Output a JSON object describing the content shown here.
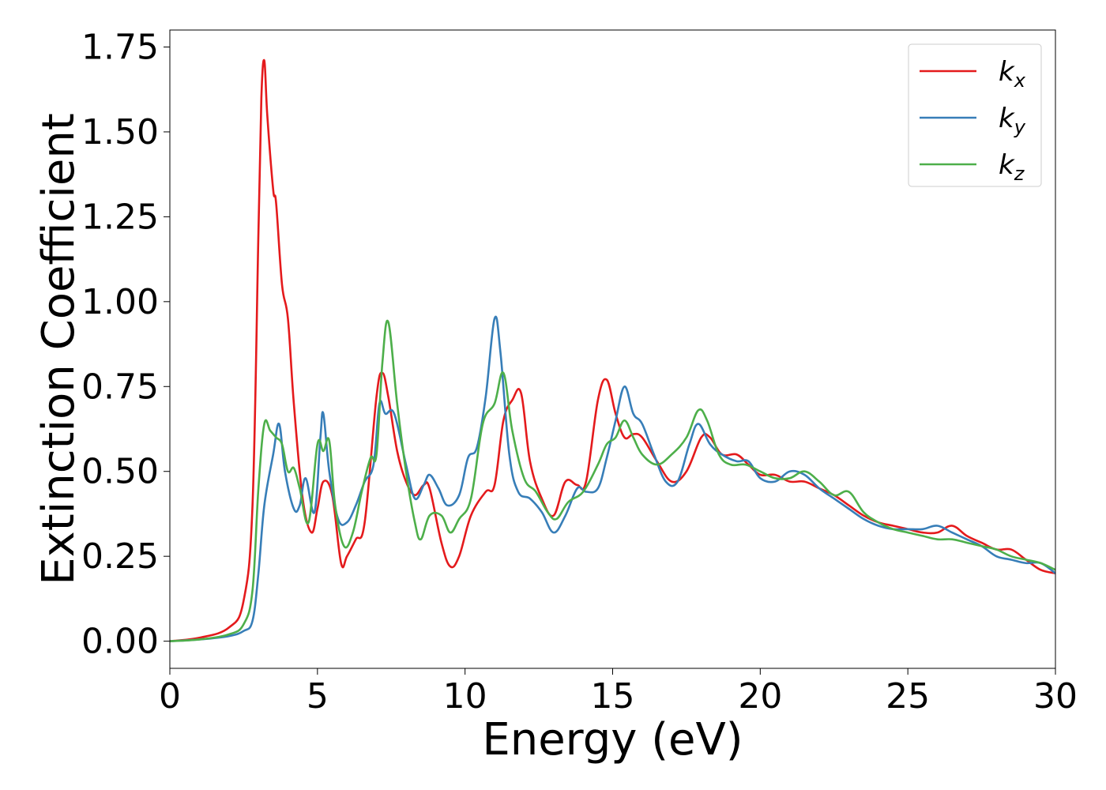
{
  "chart_data": {
    "type": "line",
    "title": "",
    "xlabel": "Energy (eV)",
    "ylabel": "Extinction Coefficient",
    "xlim": [
      0,
      30
    ],
    "ylim": [
      -0.08,
      1.8
    ],
    "xticks": [
      0,
      5,
      10,
      15,
      20,
      25,
      30
    ],
    "xtick_labels": [
      "0",
      "5",
      "10",
      "15",
      "20",
      "25",
      "30"
    ],
    "yticks": [
      0,
      0.25,
      0.5,
      0.75,
      1.0,
      1.25,
      1.5,
      1.75
    ],
    "ytick_labels": [
      "0.00",
      "0.25",
      "0.50",
      "0.75",
      "1.00",
      "1.25",
      "1.50",
      "1.75"
    ],
    "grid": false,
    "legend_position": "top-right",
    "series": [
      {
        "name": "k_x",
        "label_main": "k",
        "label_sub": "x",
        "color": "#e41a1c",
        "x": [
          0,
          1,
          2,
          2.5,
          2.8,
          3.0,
          3.1,
          3.2,
          3.3,
          3.5,
          3.6,
          3.8,
          4.0,
          4.2,
          4.5,
          4.8,
          5.0,
          5.2,
          5.5,
          5.8,
          6.0,
          6.3,
          6.6,
          7.0,
          7.2,
          7.4,
          7.7,
          8.0,
          8.3,
          8.6,
          8.8,
          9.2,
          9.5,
          9.8,
          10.2,
          10.7,
          11.0,
          11.3,
          11.6,
          11.9,
          12.2,
          12.6,
          13.0,
          13.4,
          13.8,
          14.1,
          14.5,
          14.8,
          15.1,
          15.4,
          15.7,
          16.0,
          16.5,
          17.0,
          17.5,
          18.0,
          18.3,
          18.7,
          19.2,
          19.6,
          20.0,
          20.5,
          21.0,
          21.5,
          22.0,
          22.5,
          23.0,
          23.5,
          24.0,
          24.5,
          25.0,
          25.5,
          26.0,
          26.5,
          27.0,
          27.5,
          28.0,
          28.5,
          29.0,
          29.5,
          30.0
        ],
        "y": [
          0.0,
          0.01,
          0.04,
          0.12,
          0.4,
          1.2,
          1.6,
          1.71,
          1.55,
          1.33,
          1.29,
          1.05,
          0.95,
          0.7,
          0.42,
          0.32,
          0.39,
          0.47,
          0.43,
          0.23,
          0.25,
          0.3,
          0.35,
          0.72,
          0.79,
          0.72,
          0.56,
          0.47,
          0.43,
          0.46,
          0.45,
          0.29,
          0.22,
          0.25,
          0.37,
          0.44,
          0.46,
          0.65,
          0.71,
          0.73,
          0.53,
          0.42,
          0.37,
          0.47,
          0.46,
          0.47,
          0.71,
          0.77,
          0.67,
          0.6,
          0.61,
          0.6,
          0.53,
          0.47,
          0.5,
          0.6,
          0.6,
          0.55,
          0.55,
          0.52,
          0.49,
          0.49,
          0.47,
          0.47,
          0.45,
          0.43,
          0.4,
          0.37,
          0.35,
          0.34,
          0.33,
          0.32,
          0.32,
          0.34,
          0.31,
          0.29,
          0.27,
          0.27,
          0.24,
          0.21,
          0.2
        ]
      },
      {
        "name": "k_y",
        "label_main": "k",
        "label_sub": "y",
        "color": "#377eb8",
        "x": [
          0,
          1,
          2,
          2.5,
          2.8,
          3.0,
          3.2,
          3.5,
          3.7,
          3.9,
          4.2,
          4.4,
          4.6,
          4.9,
          5.1,
          5.2,
          5.4,
          5.7,
          6.0,
          6.3,
          6.6,
          6.9,
          7.1,
          7.3,
          7.6,
          8.0,
          8.3,
          8.6,
          8.8,
          9.1,
          9.4,
          9.8,
          10.1,
          10.4,
          10.7,
          11.0,
          11.2,
          11.5,
          11.8,
          12.2,
          12.6,
          13.0,
          13.4,
          13.8,
          14.1,
          14.5,
          14.8,
          15.1,
          15.4,
          15.7,
          16.0,
          16.4,
          16.8,
          17.2,
          17.6,
          17.9,
          18.3,
          18.7,
          19.2,
          19.6,
          20.0,
          20.5,
          21.0,
          21.5,
          22.0,
          22.5,
          23.0,
          23.5,
          24.0,
          24.5,
          25.0,
          25.5,
          26.0,
          26.5,
          27.0,
          27.5,
          28.0,
          28.5,
          29.0,
          29.5,
          30.0
        ],
        "y": [
          0.0,
          0.005,
          0.015,
          0.03,
          0.06,
          0.2,
          0.4,
          0.55,
          0.64,
          0.5,
          0.39,
          0.4,
          0.48,
          0.38,
          0.6,
          0.67,
          0.5,
          0.36,
          0.35,
          0.4,
          0.47,
          0.52,
          0.7,
          0.67,
          0.67,
          0.52,
          0.42,
          0.46,
          0.49,
          0.45,
          0.4,
          0.43,
          0.54,
          0.57,
          0.72,
          0.95,
          0.85,
          0.55,
          0.44,
          0.42,
          0.38,
          0.32,
          0.37,
          0.45,
          0.44,
          0.45,
          0.54,
          0.65,
          0.75,
          0.67,
          0.64,
          0.55,
          0.47,
          0.47,
          0.58,
          0.64,
          0.58,
          0.55,
          0.53,
          0.53,
          0.48,
          0.47,
          0.5,
          0.49,
          0.45,
          0.42,
          0.39,
          0.36,
          0.34,
          0.33,
          0.33,
          0.33,
          0.34,
          0.32,
          0.3,
          0.28,
          0.25,
          0.24,
          0.23,
          0.23,
          0.2
        ]
      },
      {
        "name": "k_z",
        "label_main": "k",
        "label_sub": "z",
        "color": "#4daf4a",
        "x": [
          0,
          1,
          2,
          2.5,
          2.8,
          3.0,
          3.2,
          3.4,
          3.6,
          3.8,
          4.0,
          4.2,
          4.4,
          4.7,
          5.0,
          5.2,
          5.4,
          5.6,
          5.9,
          6.2,
          6.5,
          6.8,
          7.0,
          7.2,
          7.4,
          7.7,
          8.0,
          8.3,
          8.5,
          8.8,
          9.2,
          9.5,
          9.8,
          10.2,
          10.6,
          11.0,
          11.3,
          11.6,
          12.0,
          12.4,
          12.8,
          13.1,
          13.5,
          14.0,
          14.5,
          14.8,
          15.1,
          15.4,
          15.7,
          16.0,
          16.5,
          17.0,
          17.5,
          17.9,
          18.2,
          18.6,
          19.0,
          19.5,
          20.0,
          20.5,
          21.0,
          21.5,
          22.0,
          22.5,
          23.0,
          23.5,
          24.0,
          24.5,
          25.0,
          25.5,
          26.0,
          26.5,
          27.0,
          27.5,
          28.0,
          28.5,
          29.0,
          29.5,
          30.0
        ],
        "y": [
          0.0,
          0.005,
          0.02,
          0.05,
          0.15,
          0.45,
          0.64,
          0.62,
          0.6,
          0.58,
          0.5,
          0.51,
          0.45,
          0.35,
          0.58,
          0.56,
          0.59,
          0.4,
          0.28,
          0.32,
          0.44,
          0.54,
          0.55,
          0.82,
          0.94,
          0.7,
          0.5,
          0.35,
          0.3,
          0.37,
          0.37,
          0.32,
          0.36,
          0.42,
          0.64,
          0.7,
          0.79,
          0.62,
          0.48,
          0.44,
          0.38,
          0.36,
          0.41,
          0.44,
          0.52,
          0.58,
          0.6,
          0.65,
          0.6,
          0.55,
          0.52,
          0.55,
          0.6,
          0.68,
          0.65,
          0.55,
          0.52,
          0.52,
          0.5,
          0.48,
          0.48,
          0.5,
          0.47,
          0.43,
          0.44,
          0.38,
          0.35,
          0.33,
          0.32,
          0.31,
          0.3,
          0.3,
          0.29,
          0.28,
          0.27,
          0.25,
          0.24,
          0.23,
          0.21
        ]
      }
    ]
  }
}
